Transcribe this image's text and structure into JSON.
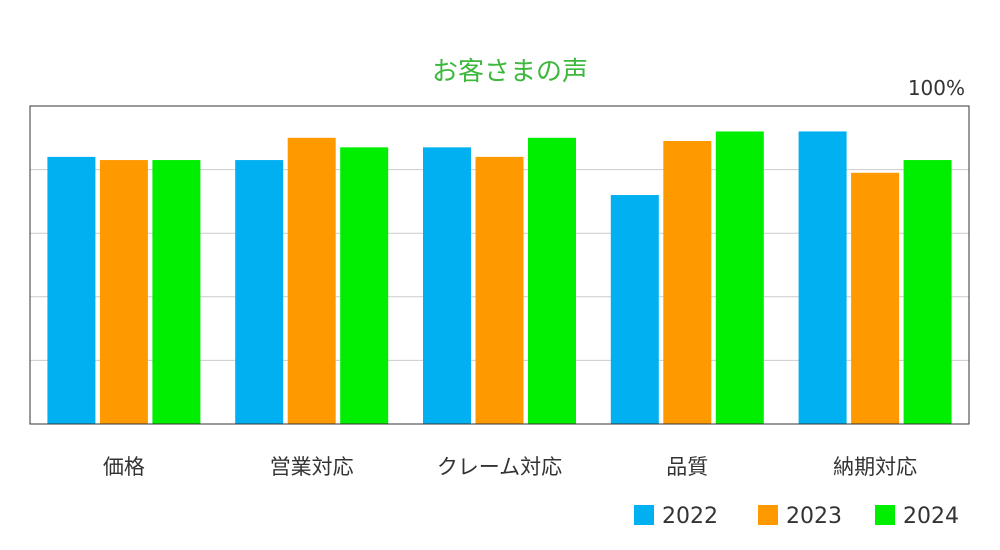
{
  "chart_data": {
    "type": "bar",
    "title": "お客さまの声",
    "categories": [
      "価格",
      "営業対応",
      "クレーム対応",
      "品質",
      "納期対応"
    ],
    "series": [
      {
        "name": "2022",
        "color": "#00B0F0",
        "values": [
          84,
          83,
          87,
          72,
          92
        ]
      },
      {
        "name": "2023",
        "color": "#FF9900",
        "values": [
          83,
          90,
          84,
          89,
          79
        ]
      },
      {
        "name": "2024",
        "color": "#00EE00",
        "values": [
          83,
          87,
          90,
          92,
          83
        ]
      }
    ],
    "ylim": [
      0,
      100
    ],
    "y_top_label": "100%",
    "xlabel": "",
    "ylabel": "",
    "grid": true,
    "legend_position": "bottom-right",
    "title_color": "#3DB83D"
  }
}
